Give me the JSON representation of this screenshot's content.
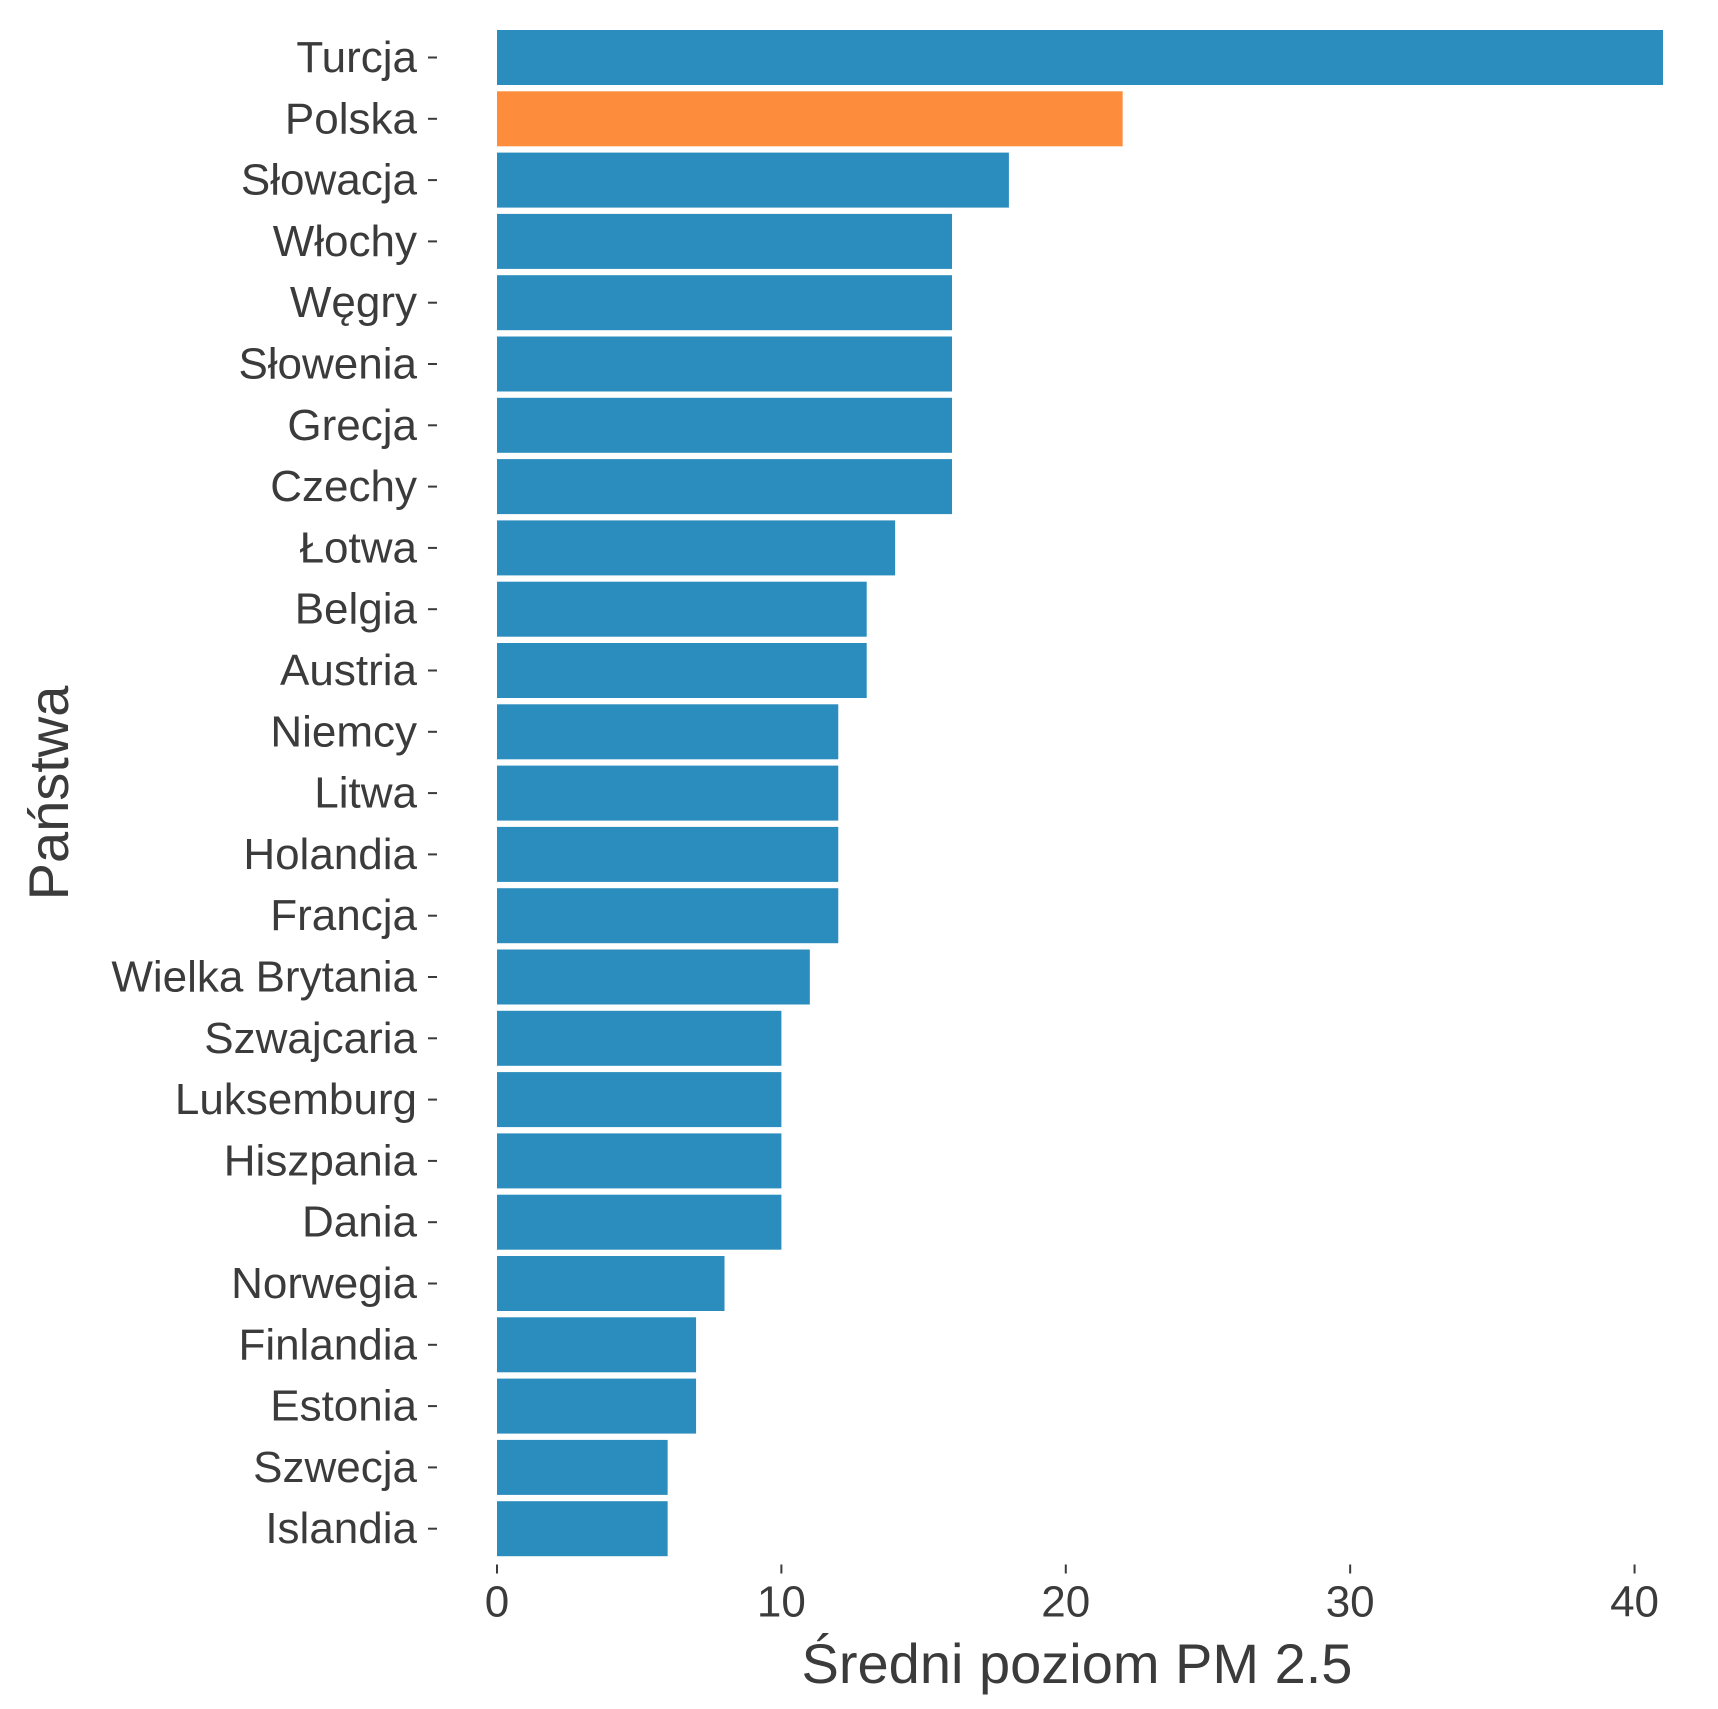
{
  "chart_data": {
    "type": "bar",
    "orientation": "horizontal",
    "xlabel": "Średni poziom PM 2.5",
    "ylabel": "Państwa",
    "xlim": [
      0,
      41
    ],
    "x_ticks": [
      0,
      10,
      20,
      30,
      40
    ],
    "grid": false,
    "legend": "none",
    "categories": [
      "Turcja",
      "Polska",
      "Słowacja",
      "Włochy",
      "Węgry",
      "Słowenia",
      "Grecja",
      "Czechy",
      "Łotwa",
      "Belgia",
      "Austria",
      "Niemcy",
      "Litwa",
      "Holandia",
      "Francja",
      "Wielka Brytania",
      "Szwajcaria",
      "Luksemburg",
      "Hiszpania",
      "Dania",
      "Norwegia",
      "Finlandia",
      "Estonia",
      "Szwecja",
      "Islandia"
    ],
    "values": [
      41,
      22,
      18,
      16,
      16,
      16,
      16,
      16,
      14,
      13,
      13,
      12,
      12,
      12,
      12,
      11,
      10,
      10,
      10,
      10,
      8,
      7,
      7,
      6,
      6
    ],
    "highlight": "Polska",
    "colors": {
      "default": "#2b8cbe",
      "highlight": "#fd8d3c",
      "text": "#3b3b3b"
    }
  }
}
